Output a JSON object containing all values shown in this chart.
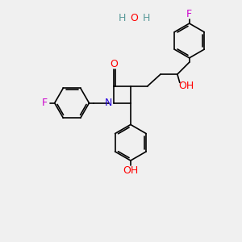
{
  "bg_color": "#f0f0f0",
  "bond_color": "#000000",
  "N_color": "#2200dd",
  "O_color": "#ff0000",
  "F_color": "#cc00cc",
  "H_water_color": "#5a9a9a",
  "O_water_color": "#ff0000",
  "lw": 1.2,
  "figsize": [
    3.0,
    3.0
  ],
  "dpi": 100,
  "xlim": [
    0,
    10
  ],
  "ylim": [
    0,
    10
  ]
}
